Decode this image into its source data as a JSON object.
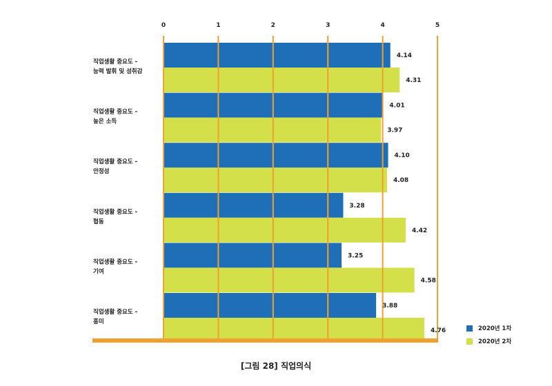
{
  "chart_data": {
    "type": "bar",
    "orientation": "horizontal",
    "categories": [
      [
        "직업생활 중요도 -",
        "능력 발휘 및 성취감"
      ],
      [
        "직업생활 중요도 -",
        "높은 소득"
      ],
      [
        "직업생활 중요도 -",
        "안정성"
      ],
      [
        "직업생활 중요도 -",
        "협동"
      ],
      [
        "직업생활 중요도 -",
        "기여"
      ],
      [
        "직업생활 중요도 -",
        "흥미"
      ]
    ],
    "series": [
      {
        "name": "2020년 1차",
        "color": "#1f6fb8",
        "values": [
          4.14,
          4.01,
          4.1,
          3.28,
          3.25,
          3.88
        ],
        "labels": [
          "4.14",
          "4.01",
          "4.10",
          "3.28",
          "3.25",
          "3.88"
        ]
      },
      {
        "name": "2020년 2차",
        "color": "#d4e04a",
        "values": [
          4.31,
          3.97,
          4.08,
          4.42,
          4.58,
          4.76
        ],
        "labels": [
          "4.31",
          "3.97",
          "4.08",
          "4.42",
          "4.58",
          "4.76"
        ]
      }
    ],
    "xlim": [
      0,
      5
    ],
    "xticks": [
      "0",
      "1",
      "2",
      "3",
      "4",
      "5"
    ],
    "grid": true,
    "grid_color": "#f0a030",
    "legend_position": "bottom-right"
  },
  "caption": "[그림 28] 직업의식"
}
